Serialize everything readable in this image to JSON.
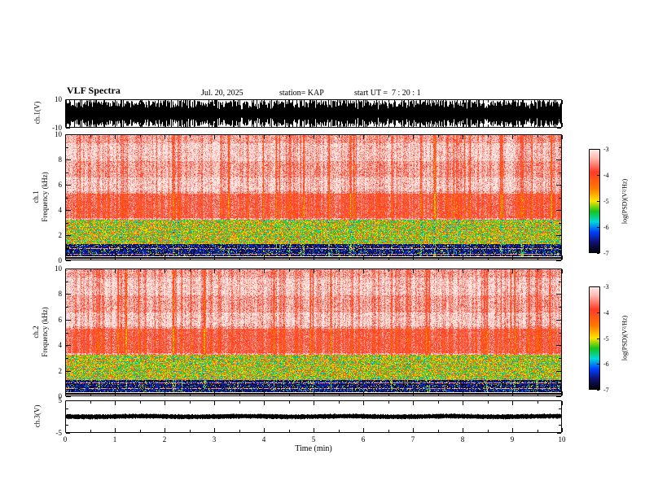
{
  "header": {
    "title": "VLF Spectra",
    "date": "Jul. 20, 2025",
    "station": "station= KAP",
    "start_ut": "start UT =  7 : 20 : 1"
  },
  "x_axis": {
    "label": "Time (min)",
    "min": 0,
    "max": 10,
    "ticks": [
      "0",
      "1",
      "2",
      "3",
      "4",
      "5",
      "6",
      "7",
      "8",
      "9",
      "10"
    ]
  },
  "panels": {
    "wave": {
      "ylabel": "ch.1(V)",
      "ymin": -10,
      "ymax": 10,
      "yticks": [
        "10",
        "-10"
      ]
    },
    "spec1": {
      "ylabel_line1": "ch.1",
      "ylabel_line2": "Frequency (kHz)",
      "ymin": 0,
      "ymax": 10,
      "yticks": [
        "10",
        "8",
        "6",
        "4",
        "2",
        "0"
      ]
    },
    "spec2": {
      "ylabel_line1": "ch.2",
      "ylabel_line2": "Frequency (kHz)",
      "ymin": 0,
      "ymax": 10,
      "yticks": [
        "10",
        "8",
        "6",
        "4",
        "2",
        "0"
      ]
    },
    "ch3": {
      "ylabel": "ch.3(V)",
      "ymin": -5,
      "ymax": 5,
      "yticks": [
        "5",
        "-5"
      ]
    }
  },
  "colorbar": {
    "label": "log(PSD)(V²/Hz)",
    "ticks": [
      "-3",
      "-4",
      "-5",
      "-6",
      "-7"
    ],
    "zmin": -7,
    "zmax": -3,
    "stops": [
      [
        0,
        "#ffeae7"
      ],
      [
        0.08,
        "#ffbdb4"
      ],
      [
        0.22,
        "#ff3a28"
      ],
      [
        0.38,
        "#ff7a00"
      ],
      [
        0.5,
        "#ffe400"
      ],
      [
        0.6,
        "#16c41a"
      ],
      [
        0.7,
        "#00d8d8"
      ],
      [
        0.8,
        "#0040ff"
      ],
      [
        0.9,
        "#101070"
      ],
      [
        1,
        "#000000"
      ]
    ]
  },
  "chart_data": [
    {
      "type": "line",
      "panel": "ch.1(V)",
      "xlabel": "Time (min)",
      "xlim": [
        0,
        10
      ],
      "ylim": [
        -10,
        10
      ],
      "description": "dense broadband noise waveform, black, envelope oscillating and filling most of the -10..10 V range for the whole 10 minutes"
    },
    {
      "type": "heatmap",
      "panel": "ch.1 spectrogram",
      "xlabel": "Time (min)",
      "ylabel": "Frequency (kHz)",
      "zlabel": "log(PSD)(V²/Hz)",
      "xlim": [
        0,
        10
      ],
      "ylim": [
        0,
        10
      ],
      "zlim": [
        -7,
        -3
      ],
      "features": {
        "background_psd": -3.3,
        "vertical_red_striations_psd": -4.0,
        "band_3p4_to_5p3_kHz_psd": -3.8,
        "band_1p4_to_3p2_kHz_psd": [
          -4.3,
          -5.7
        ],
        "band_0p4_to_1p3_kHz_psd": [
          -6.2,
          -7
        ],
        "lighter_bands_kHz": [
          [
            5.5,
            6.6
          ],
          [
            7.9,
            9.3
          ]
        ],
        "below_0p35_kHz": "alternating white gaps and solid black horizontal lines"
      }
    },
    {
      "type": "heatmap",
      "panel": "ch.2 spectrogram",
      "xlabel": "Time (min)",
      "ylabel": "Frequency (kHz)",
      "zlabel": "log(PSD)(V²/Hz)",
      "xlim": [
        0,
        10
      ],
      "ylim": [
        0,
        10
      ],
      "zlim": [
        -7,
        -3
      ],
      "features": {
        "background_psd": -3.3,
        "vertical_red_striations_psd": -4.0,
        "band_3p4_to_5p3_kHz_psd": -3.8,
        "band_1p4_to_3p2_kHz_psd": [
          -4.3,
          -5.7
        ],
        "band_0p4_to_1p3_kHz_psd": [
          -6.2,
          -7
        ],
        "lighter_bands_kHz": [
          [
            5.5,
            6.6
          ],
          [
            7.9,
            9.3
          ]
        ],
        "below_0p35_kHz": "alternating white gaps and solid black horizontal lines"
      }
    },
    {
      "type": "line",
      "panel": "ch.3(V)",
      "xlabel": "Time (min)",
      "xlim": [
        0,
        10
      ],
      "ylim": [
        -5,
        5
      ],
      "description": "single thick flat black trace at approximately 0 V spanning the full time range"
    }
  ]
}
